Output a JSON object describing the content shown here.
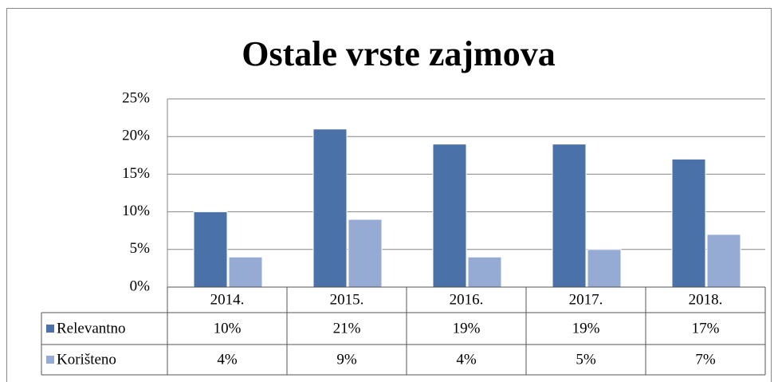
{
  "chart_data": {
    "type": "bar",
    "title": "Ostale vrste zajmova",
    "categories": [
      "2014.",
      "2015.",
      "2016.",
      "2017.",
      "2018."
    ],
    "series": [
      {
        "name": "Relevantno",
        "color": "#4a71a8",
        "values": [
          10,
          21,
          19,
          19,
          17
        ],
        "value_labels": [
          "10%",
          "21%",
          "19%",
          "19%",
          "17%"
        ]
      },
      {
        "name": "Korišteno",
        "color": "#96abd4",
        "values": [
          4,
          9,
          4,
          5,
          7
        ],
        "value_labels": [
          "4%",
          "9%",
          "4%",
          "5%",
          "7%"
        ]
      }
    ],
    "ylim": [
      0,
      25
    ],
    "yticks": [
      {
        "value": 0,
        "label": "0%"
      },
      {
        "value": 5,
        "label": "5%"
      },
      {
        "value": 10,
        "label": "10%"
      },
      {
        "value": 15,
        "label": "15%"
      },
      {
        "value": 20,
        "label": "20%"
      },
      {
        "value": 25,
        "label": "25%"
      }
    ],
    "grid": true,
    "data_table": true
  }
}
